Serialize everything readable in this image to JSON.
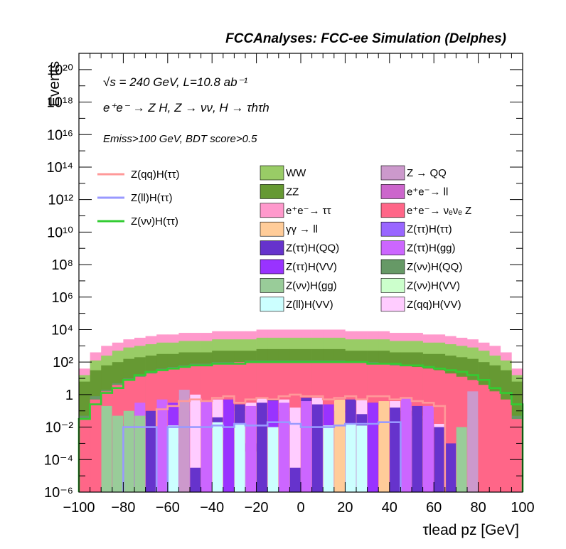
{
  "header": {
    "title": "FCCAnalyses: FCC-ee Simulation (Delphes)"
  },
  "annotations": {
    "line1": "√s = 240 GeV, L=10.8 ab⁻¹",
    "line2": "e⁺e⁻ → Z H, Z → νν, H → τhτh",
    "line3": "Emiss>100 GeV, BDT score>0.5"
  },
  "colors": {
    "frame": "#000000",
    "signal_qq": "#ff9999",
    "signal_ll": "#9999ff",
    "signal_vv": "#33cc33"
  },
  "chart_data": {
    "type": "bar",
    "stacked": true,
    "xlabel": "τlead pz [GeV]",
    "ylabel": "Events",
    "xlim": [
      -100,
      100
    ],
    "ylim": [
      1e-06,
      1e+21
    ],
    "log_y": true,
    "bin_width": 5,
    "x_ticks": [
      -100,
      -80,
      -60,
      -40,
      -20,
      0,
      20,
      40,
      60,
      80,
      100
    ],
    "y_ticks": [
      "10⁻⁶",
      "10⁻⁴",
      "10⁻²",
      "1",
      "10²",
      "10⁴",
      "10⁶",
      "10⁸",
      "10¹⁰",
      "10¹²",
      "10¹⁴",
      "10¹⁶",
      "10¹⁸",
      "10²⁰"
    ],
    "y_tick_exponents": [
      -6,
      -4,
      -2,
      0,
      2,
      4,
      6,
      8,
      10,
      12,
      14,
      16,
      18,
      20
    ],
    "legend_position": "top",
    "stack_total_log10": [
      1.6,
      2.6,
      3.0,
      3.2,
      3.4,
      3.5,
      3.6,
      3.7,
      3.7,
      3.8,
      3.8,
      3.8,
      3.9,
      3.9,
      3.9,
      3.9,
      4.0,
      4.0,
      4.0,
      4.0,
      4.0,
      4.0,
      4.0,
      4.0,
      3.9,
      3.9,
      3.9,
      3.9,
      3.8,
      3.8,
      3.8,
      3.7,
      3.7,
      3.6,
      3.5,
      3.4,
      3.2,
      3.0,
      2.6,
      1.6
    ],
    "stack_layers": [
      {
        "name": "e⁺e⁻→ νₑνₑ Z",
        "color": "#ff6688",
        "top_log10": [
          -1.5,
          -0.3,
          0.2,
          0.6,
          0.9,
          1.1,
          1.3,
          1.5,
          1.6,
          1.7,
          1.8,
          1.8,
          1.9,
          1.9,
          2.0,
          2.0,
          2.0,
          2.0,
          2.0,
          2.0,
          2.0,
          2.0,
          2.0,
          2.0,
          2.0,
          2.0,
          1.9,
          1.9,
          1.8,
          1.8,
          1.7,
          1.6,
          1.5,
          1.3,
          1.1,
          0.9,
          0.6,
          0.2,
          -0.3,
          -1.5
        ]
      },
      {
        "name": "Z(νν)H(QQ)",
        "color": "#669966",
        "top_log10": [
          -1.3,
          -0.1,
          0.3,
          0.7,
          1.0,
          1.2,
          1.4,
          1.6,
          1.7,
          1.8,
          1.9,
          1.9,
          2.0,
          2.0,
          2.0,
          2.1,
          2.1,
          2.1,
          2.1,
          2.1,
          2.1,
          2.1,
          2.1,
          2.1,
          2.0,
          2.0,
          2.0,
          1.9,
          1.9,
          1.8,
          1.7,
          1.6,
          1.4,
          1.2,
          1.0,
          0.7,
          0.3,
          -0.1,
          -1.3,
          -1.3
        ]
      },
      {
        "name": "ZZ",
        "color": "#669933",
        "top_log10": [
          0.8,
          1.5,
          1.8,
          2.0,
          2.2,
          2.3,
          2.4,
          2.5,
          2.5,
          2.6,
          2.6,
          2.6,
          2.7,
          2.7,
          2.7,
          2.7,
          2.8,
          2.8,
          2.8,
          2.8,
          2.8,
          2.8,
          2.8,
          2.8,
          2.7,
          2.7,
          2.7,
          2.7,
          2.6,
          2.6,
          2.6,
          2.5,
          2.5,
          2.4,
          2.3,
          2.2,
          2.0,
          1.8,
          1.5,
          0.8
        ]
      },
      {
        "name": "WW",
        "color": "#99cc66",
        "top_log10": [
          1.2,
          2.1,
          2.4,
          2.7,
          2.9,
          3.0,
          3.1,
          3.2,
          3.2,
          3.3,
          3.3,
          3.3,
          3.4,
          3.4,
          3.4,
          3.4,
          3.5,
          3.5,
          3.5,
          3.5,
          3.5,
          3.5,
          3.5,
          3.5,
          3.4,
          3.4,
          3.4,
          3.4,
          3.3,
          3.3,
          3.3,
          3.2,
          3.2,
          3.1,
          3.0,
          2.9,
          2.7,
          2.4,
          2.1,
          1.2
        ]
      },
      {
        "name": "e⁺e⁻→ ττ",
        "color": "#ff99cc",
        "top_log10": [
          1.6,
          2.6,
          3.0,
          3.2,
          3.4,
          3.5,
          3.6,
          3.7,
          3.7,
          3.8,
          3.8,
          3.8,
          3.9,
          3.9,
          3.9,
          3.9,
          4.0,
          4.0,
          4.0,
          4.0,
          4.0,
          4.0,
          4.0,
          4.0,
          3.9,
          3.9,
          3.9,
          3.9,
          3.8,
          3.8,
          3.8,
          3.7,
          3.7,
          3.6,
          3.5,
          3.4,
          3.2,
          3.0,
          2.6,
          1.6
        ]
      }
    ],
    "small_components": {
      "names": [
        "Z(qq)H(VV)",
        "Z(ττ)H(QQ)",
        "Z(ττ)H(VV)",
        "Z(ll)H(VV)",
        "γγ → ll",
        "Z(ττ)H(gg)",
        "Z(νν)H(gg)",
        "Z → QQ"
      ],
      "colors": [
        "#ffccff",
        "#6633cc",
        "#9933ff",
        "#ccffff",
        "#ffcc99",
        "#cc66ff",
        "#99cc99",
        "#cc99cc"
      ],
      "bin_log10": [
        [
          null,
          null,
          -5.5,
          -3.8,
          -2.0,
          -1.7,
          -1.5,
          -1.0,
          -0.5,
          -1.0,
          0.0,
          -0.8,
          -0.3,
          -0.5,
          -1.0,
          -0.5,
          -0.2,
          -0.6,
          -0.3,
          -0.8,
          -0.4,
          -0.2,
          -0.7,
          -0.4,
          -1.1,
          -0.3,
          -0.6,
          -1.0,
          -0.4,
          -0.8,
          -1.3,
          -1.6,
          -1.8,
          null,
          null,
          null,
          null,
          null,
          null,
          null
        ],
        [
          null,
          null,
          -4.0,
          -3.0,
          -2.8,
          -2.0,
          -1.0,
          -0.6,
          -3.0,
          -1.0,
          -4.5,
          -0.8,
          -1.4,
          -2.8,
          -0.6,
          -3.0,
          -0.5,
          -0.3,
          -1.0,
          -4.5,
          -0.2,
          -0.6,
          -5.0,
          -1.0,
          -0.3,
          -1.2,
          -0.5,
          -2.0,
          -0.8,
          -1.0,
          -0.7,
          -1.5,
          -2.0,
          -3.0,
          null,
          null,
          null,
          null,
          null,
          null
        ],
        [
          null,
          null,
          -3.0,
          -2.2,
          -1.8,
          -1.0,
          null,
          null,
          -0.5,
          null,
          null,
          null,
          null,
          -0.3,
          null,
          null,
          null,
          -0.4,
          null,
          null,
          null,
          null,
          -0.6,
          null,
          null,
          null,
          -0.5,
          null,
          null,
          null,
          null,
          null,
          null,
          null,
          null,
          null,
          null,
          null,
          null,
          null
        ],
        [
          null,
          null,
          null,
          null,
          null,
          null,
          null,
          null,
          -1.9,
          null,
          null,
          null,
          -1.7,
          null,
          -1.8,
          -3.5,
          null,
          -2.0,
          -1.8,
          null,
          null,
          null,
          -1.9,
          null,
          -1.8,
          -1.9,
          null,
          null,
          null,
          null,
          null,
          null,
          null,
          null,
          null,
          null,
          null,
          null,
          null,
          null
        ],
        [
          null,
          null,
          null,
          null,
          null,
          null,
          null,
          null,
          null,
          null,
          null,
          null,
          null,
          null,
          null,
          null,
          null,
          null,
          null,
          null,
          null,
          null,
          null,
          -0.3,
          null,
          null,
          null,
          -0.4,
          null,
          null,
          null,
          null,
          null,
          null,
          null,
          null,
          null,
          null,
          null,
          null
        ],
        [
          null,
          null,
          null,
          null,
          null,
          -0.5,
          null,
          -0.3,
          null,
          -0.6,
          null,
          -0.4,
          null,
          null,
          null,
          -0.7,
          null,
          null,
          -0.5,
          null,
          -0.4,
          null,
          null,
          null,
          null,
          null,
          null,
          null,
          null,
          -0.2,
          null,
          -0.7,
          null,
          null,
          null,
          null,
          null,
          null,
          null,
          null
        ],
        [
          null,
          null,
          -0.7,
          -1.3,
          -1.0,
          -1.3,
          null,
          null,
          null,
          null,
          null,
          null,
          null,
          null,
          null,
          null,
          null,
          null,
          null,
          null,
          null,
          null,
          null,
          null,
          null,
          null,
          null,
          null,
          null,
          null,
          null,
          null,
          null,
          null,
          -2.0,
          -1.5,
          null,
          null,
          null,
          null
        ],
        [
          null,
          null,
          null,
          null,
          null,
          null,
          null,
          null,
          null,
          0.3,
          null,
          null,
          null,
          null,
          null,
          null,
          null,
          null,
          null,
          null,
          null,
          null,
          null,
          null,
          null,
          null,
          null,
          null,
          null,
          null,
          null,
          null,
          null,
          null,
          null,
          0.2,
          null,
          null,
          null,
          null
        ]
      ]
    },
    "series": [
      {
        "name": "Z(qq)H(ττ)",
        "color": "#ff9999",
        "values_log10": [
          null,
          null,
          null,
          null,
          null,
          null,
          null,
          -0.9,
          -0.7,
          -0.4,
          -0.3,
          -0.4,
          -0.2,
          -0.1,
          -0.5,
          -0.3,
          -0.2,
          -0.3,
          -0.1,
          0.0,
          -0.1,
          -0.1,
          -0.3,
          -0.2,
          -0.1,
          -0.3,
          -0.1,
          -0.1,
          -0.3,
          -0.2,
          -0.4,
          -0.5,
          -0.7,
          null,
          null,
          null,
          null,
          null,
          null,
          null
        ]
      },
      {
        "name": "Z(ll)H(ττ)",
        "color": "#9999ff",
        "values_log10": [
          null,
          null,
          null,
          null,
          -2.0,
          -2.0,
          -2.0,
          null,
          -2.0,
          -2.0,
          -2.0,
          -2.0,
          -1.9,
          -2.0,
          -1.8,
          -1.9,
          -1.9,
          -1.7,
          -1.7,
          -1.8,
          -2.0,
          -2.0,
          -2.0,
          -1.9,
          -1.8,
          -1.8,
          -1.8,
          -1.7,
          -1.7,
          null,
          null,
          null,
          null,
          null,
          null,
          null,
          null,
          null,
          null,
          null
        ]
      },
      {
        "name": "Z(νν)H(ττ)",
        "color": "#33cc33",
        "values_log10": [
          -1.5,
          -0.6,
          0.1,
          0.4,
          0.9,
          1.2,
          1.4,
          1.5,
          1.6,
          1.7,
          1.8,
          1.8,
          1.9,
          1.9,
          1.9,
          2.0,
          2.0,
          2.0,
          2.0,
          2.0,
          2.0,
          2.0,
          2.0,
          2.0,
          2.0,
          2.0,
          1.9,
          1.9,
          1.9,
          1.8,
          1.8,
          1.7,
          1.6,
          1.5,
          1.4,
          1.2,
          0.9,
          0.4,
          0.1,
          -0.6
        ]
      }
    ],
    "legend": {
      "lines": [
        {
          "name": "Z(qq)H(ττ)",
          "color": "#ff9999"
        },
        {
          "name": "Z(ll)H(ττ)",
          "color": "#9999ff"
        },
        {
          "name": "Z(νν)H(ττ)",
          "color": "#33cc33"
        }
      ],
      "boxes_col1": [
        {
          "name": "WW",
          "color": "#99cc66"
        },
        {
          "name": "ZZ",
          "color": "#669933"
        },
        {
          "name": "e⁺e⁻→ ττ",
          "color": "#ff99cc"
        },
        {
          "name": "γγ → ll",
          "color": "#ffcc99"
        },
        {
          "name": "Z(ττ)H(QQ)",
          "color": "#6633cc"
        },
        {
          "name": "Z(ττ)H(VV)",
          "color": "#9933ff"
        },
        {
          "name": "Z(νν)H(gg)",
          "color": "#99cc99"
        },
        {
          "name": "Z(ll)H(VV)",
          "color": "#ccffff"
        }
      ],
      "boxes_col2": [
        {
          "name": "Z → QQ",
          "color": "#cc99cc"
        },
        {
          "name": "e⁺e⁻→ ll",
          "color": "#cc66cc"
        },
        {
          "name": "e⁺e⁻→ νₑνₑ Z",
          "color": "#ff6688"
        },
        {
          "name": "Z(ττ)H(ττ)",
          "color": "#9966ff"
        },
        {
          "name": "Z(ττ)H(gg)",
          "color": "#cc66ff"
        },
        {
          "name": "Z(νν)H(QQ)",
          "color": "#669966"
        },
        {
          "name": "Z(νν)H(VV)",
          "color": "#ccffcc"
        },
        {
          "name": "Z(qq)H(VV)",
          "color": "#ffccff"
        }
      ]
    }
  }
}
